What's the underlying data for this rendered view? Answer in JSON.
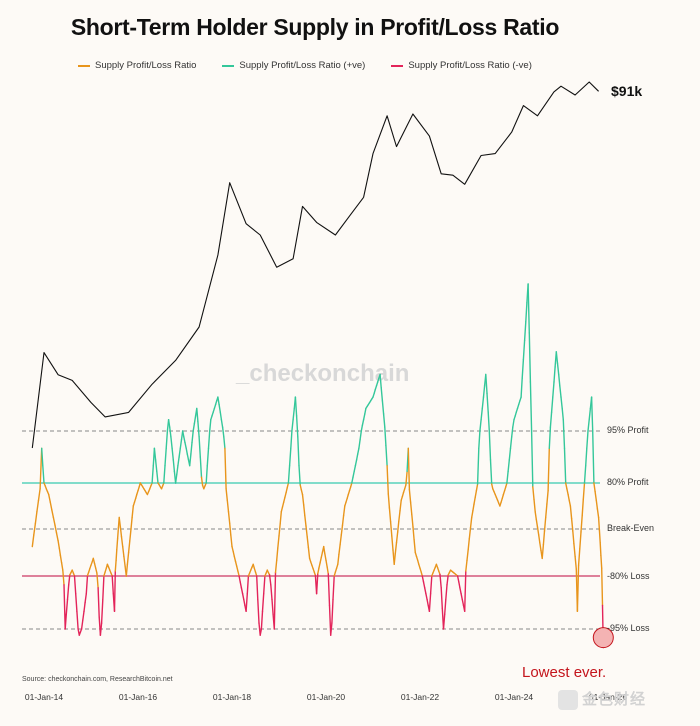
{
  "chart_data": {
    "type": "line",
    "title": "Short-Term Holder Supply in Profit/Loss Ratio",
    "legend": [
      {
        "name": "Supply Profit/Loss Ratio",
        "color": "#e8951c"
      },
      {
        "name": "Supply Profit/Loss Ratio (+ve)",
        "color": "#34c79a"
      },
      {
        "name": "Supply Profit/Loss Ratio (-ve)",
        "color": "#e3245a"
      }
    ],
    "x_ticks": [
      "01-Jan-14",
      "01-Jan-16",
      "01-Jan-18",
      "01-Jan-20",
      "01-Jan-22",
      "01-Jan-24",
      "01-Jan-26"
    ],
    "ratio_reference_lines": [
      {
        "label": "95% Profit",
        "value": 0.95,
        "color": "#888888",
        "style": "dashed"
      },
      {
        "label": "80% Profit",
        "value": 0.8,
        "color": "#6fd8c4",
        "style": "solid"
      },
      {
        "label": "Break-Even",
        "value": 0.0,
        "color": "#888888",
        "style": "dashed"
      },
      {
        "label": "-80% Loss",
        "value": -0.8,
        "color": "#d96f8c",
        "style": "solid"
      },
      {
        "label": "-95% Loss",
        "value": -0.95,
        "color": "#888888",
        "style": "dashed"
      }
    ],
    "price_series": {
      "name": "BTC price (log scale)",
      "x_years": [
        2013.75,
        2014.0,
        2014.3,
        2014.6,
        2015.0,
        2015.3,
        2015.8,
        2016.3,
        2016.8,
        2017.3,
        2017.7,
        2017.95,
        2018.3,
        2018.6,
        2018.95,
        2019.3,
        2019.5,
        2019.8,
        2020.2,
        2020.5,
        2020.8,
        2021.0,
        2021.3,
        2021.5,
        2021.85,
        2022.2,
        2022.45,
        2022.7,
        2022.95,
        2023.3,
        2023.6,
        2023.95,
        2024.2,
        2024.5,
        2024.85,
        2025.0,
        2025.3,
        2025.6,
        2025.8
      ],
      "values": [
        130,
        750,
        500,
        450,
        300,
        230,
        250,
        420,
        650,
        1200,
        4500,
        17000,
        8000,
        6500,
        3600,
        4200,
        11000,
        8200,
        6500,
        9200,
        13000,
        29000,
        58000,
        33000,
        60000,
        40000,
        20000,
        19500,
        16500,
        28000,
        29000,
        43000,
        70000,
        58000,
        90000,
        100000,
        85000,
        108000,
        91000
      ],
      "current_price_label": "$91k"
    },
    "ratio_series": {
      "x_years": [
        2013.75,
        2013.95,
        2014.1,
        2014.3,
        2014.45,
        2014.6,
        2014.75,
        2014.9,
        2015.05,
        2015.2,
        2015.35,
        2015.5,
        2015.6,
        2015.75,
        2015.9,
        2016.05,
        2016.2,
        2016.35,
        2016.5,
        2016.65,
        2016.8,
        2016.95,
        2017.1,
        2017.25,
        2017.4,
        2017.55,
        2017.7,
        2017.85,
        2018.0,
        2018.15,
        2018.3,
        2018.45,
        2018.6,
        2018.75,
        2018.9,
        2019.05,
        2019.2,
        2019.35,
        2019.5,
        2019.65,
        2019.8,
        2019.95,
        2020.1,
        2020.25,
        2020.4,
        2020.55,
        2020.7,
        2020.85,
        2021.0,
        2021.15,
        2021.3,
        2021.45,
        2021.6,
        2021.75,
        2021.9,
        2022.05,
        2022.2,
        2022.35,
        2022.5,
        2022.65,
        2022.8,
        2022.95,
        2023.1,
        2023.25,
        2023.4,
        2023.55,
        2023.7,
        2023.85,
        2024.0,
        2024.15,
        2024.3,
        2024.45,
        2024.6,
        2024.75,
        2024.9,
        2025.05,
        2025.2,
        2025.35,
        2025.5,
        2025.65,
        2025.8,
        2025.9
      ],
      "values": [
        -0.3,
        0.9,
        0.6,
        -0.2,
        -0.95,
        -0.7,
        -1.0,
        -0.85,
        -0.5,
        -1.0,
        -0.6,
        -0.9,
        0.2,
        -0.8,
        0.4,
        0.8,
        0.6,
        0.9,
        0.7,
        1.0,
        0.8,
        0.95,
        0.85,
        1.05,
        0.7,
        1.0,
        1.1,
        0.9,
        -0.3,
        -0.8,
        -0.9,
        -0.6,
        -1.0,
        -0.7,
        -0.95,
        0.3,
        0.8,
        1.1,
        0.6,
        -0.5,
        -0.85,
        -0.3,
        -1.0,
        -0.6,
        0.4,
        0.8,
        0.9,
        1.05,
        1.1,
        1.2,
        0.85,
        -0.6,
        0.5,
        0.9,
        -0.4,
        -0.8,
        -0.9,
        -0.6,
        -0.95,
        -0.7,
        -0.8,
        -0.9,
        0.2,
        0.9,
        1.2,
        0.7,
        0.4,
        0.8,
        1.0,
        1.1,
        1.6,
        0.3,
        -0.5,
        0.9,
        1.3,
        1.0,
        0.4,
        -0.9,
        0.8,
        1.1,
        0.2,
        -1.1
      ]
    }
  },
  "watermark": "_checkonchain",
  "source": "Source: checkonchain.com, ResearchBitcoin.net",
  "annotation": "Lowest ever.",
  "brand": "金色财经"
}
